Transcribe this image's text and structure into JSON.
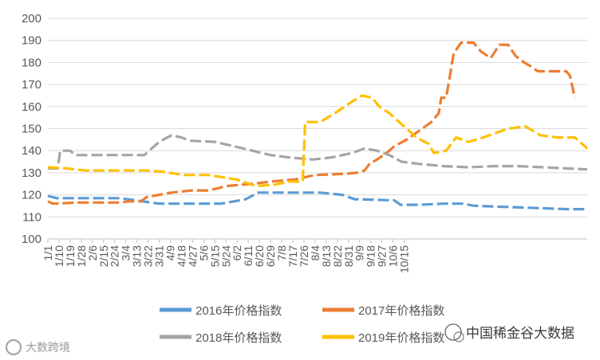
{
  "chart_data": {
    "type": "line",
    "title": "",
    "xlabel": "",
    "ylabel": "",
    "ylim": [
      100,
      200
    ],
    "yticks": [
      100,
      110,
      120,
      130,
      140,
      150,
      160,
      170,
      180,
      190,
      200
    ],
    "xtick_labels": [
      "1/1",
      "1/10",
      "1/19",
      "1/28",
      "2/6",
      "2/15",
      "2/24",
      "3/4",
      "3/13",
      "3/22",
      "3/31",
      "4/9",
      "4/18",
      "4/27",
      "5/6",
      "5/15",
      "5/24",
      "6/2",
      "6/11",
      "6/20",
      "6/29",
      "7/8",
      "7/17",
      "7/26",
      "8/4",
      "8/13",
      "8/22",
      "8/31",
      "9/9",
      "9/18",
      "9/27",
      "10/6",
      "10/15"
    ],
    "grid": "horizontal",
    "legend": "bottom",
    "line_style": "dashed",
    "series": [
      {
        "name": "2016年价格指数",
        "color": "#5B9BD5",
        "points": [
          [
            0,
            119.5
          ],
          [
            7,
            118.5
          ],
          [
            30,
            118.5
          ],
          [
            58,
            118.5
          ],
          [
            90,
            116
          ],
          [
            140,
            116
          ],
          [
            160,
            118
          ],
          [
            170,
            121
          ],
          [
            220,
            121
          ],
          [
            238,
            120
          ],
          [
            248,
            118
          ],
          [
            280,
            117.5
          ],
          [
            285,
            115.5
          ],
          [
            300,
            115.5
          ],
          [
            320,
            116
          ],
          [
            335,
            116
          ],
          [
            345,
            115
          ],
          [
            370,
            114.5
          ],
          [
            395,
            114
          ],
          [
            420,
            113.5
          ],
          [
            436,
            113.5
          ]
        ]
      },
      {
        "name": "2017年价格指数",
        "color": "#ED7D31",
        "points": [
          [
            0,
            117
          ],
          [
            4,
            116
          ],
          [
            25,
            116.5
          ],
          [
            40,
            116.5
          ],
          [
            60,
            116.5
          ],
          [
            64,
            117
          ],
          [
            75,
            117
          ],
          [
            80,
            119
          ],
          [
            90,
            120
          ],
          [
            100,
            121
          ],
          [
            116,
            122
          ],
          [
            130,
            122
          ],
          [
            145,
            124
          ],
          [
            165,
            125
          ],
          [
            180,
            126
          ],
          [
            200,
            127
          ],
          [
            216,
            129
          ],
          [
            240,
            129.5
          ],
          [
            250,
            130
          ],
          [
            256,
            131
          ],
          [
            260,
            134
          ],
          [
            266,
            136
          ],
          [
            274,
            139
          ],
          [
            280,
            142
          ],
          [
            290,
            145
          ],
          [
            300,
            149
          ],
          [
            310,
            153
          ],
          [
            316,
            157
          ],
          [
            318,
            164
          ],
          [
            322,
            164
          ],
          [
            328,
            184
          ],
          [
            334,
            189
          ],
          [
            344,
            189
          ],
          [
            350,
            185
          ],
          [
            358,
            182
          ],
          [
            365,
            188
          ],
          [
            372,
            188
          ],
          [
            378,
            183
          ],
          [
            385,
            180
          ],
          [
            391,
            178
          ],
          [
            396,
            176
          ],
          [
            405,
            176
          ],
          [
            419,
            176
          ],
          [
            422,
            174
          ],
          [
            426,
            164
          ]
        ]
      },
      {
        "name": "2018年价格指数",
        "color": "#A5A5A5",
        "points": [
          [
            0,
            132
          ],
          [
            8,
            132
          ],
          [
            10,
            140
          ],
          [
            18,
            140
          ],
          [
            22,
            138
          ],
          [
            40,
            138
          ],
          [
            58,
            138
          ],
          [
            66,
            138
          ],
          [
            78,
            138
          ],
          [
            90,
            144
          ],
          [
            100,
            147
          ],
          [
            108,
            146
          ],
          [
            115,
            144.5
          ],
          [
            135,
            144
          ],
          [
            158,
            141
          ],
          [
            180,
            138
          ],
          [
            194,
            137
          ],
          [
            214,
            136
          ],
          [
            230,
            137
          ],
          [
            246,
            139
          ],
          [
            256,
            141
          ],
          [
            266,
            140
          ],
          [
            276,
            138
          ],
          [
            286,
            135
          ],
          [
            300,
            134
          ],
          [
            320,
            133
          ],
          [
            340,
            132.5
          ],
          [
            360,
            133
          ],
          [
            380,
            133
          ],
          [
            400,
            132.5
          ],
          [
            436,
            131.5
          ]
        ]
      },
      {
        "name": "2019年价格指数",
        "color": "#FFC000",
        "points": [
          [
            0,
            132.5
          ],
          [
            15,
            132
          ],
          [
            30,
            131
          ],
          [
            55,
            131
          ],
          [
            80,
            131
          ],
          [
            92,
            130.5
          ],
          [
            110,
            129
          ],
          [
            130,
            129
          ],
          [
            152,
            127
          ],
          [
            168,
            124
          ],
          [
            182,
            124.5
          ],
          [
            196,
            126
          ],
          [
            206,
            126
          ],
          [
            208,
            153
          ],
          [
            220,
            153
          ],
          [
            232,
            157
          ],
          [
            248,
            163
          ],
          [
            254,
            165
          ],
          [
            262,
            164
          ],
          [
            268,
            160
          ],
          [
            276,
            157
          ],
          [
            290,
            150
          ],
          [
            298,
            146
          ],
          [
            308,
            143
          ],
          [
            312,
            139
          ],
          [
            322,
            140
          ],
          [
            330,
            146
          ],
          [
            340,
            144
          ],
          [
            352,
            146
          ],
          [
            362,
            148
          ],
          [
            372,
            150
          ],
          [
            386,
            151
          ],
          [
            398,
            147
          ],
          [
            412,
            146
          ],
          [
            426,
            146
          ],
          [
            436,
            141
          ]
        ]
      }
    ]
  },
  "watermarks": {
    "left_text": "大数跨境",
    "right_text": "中国稀金谷大数据"
  }
}
